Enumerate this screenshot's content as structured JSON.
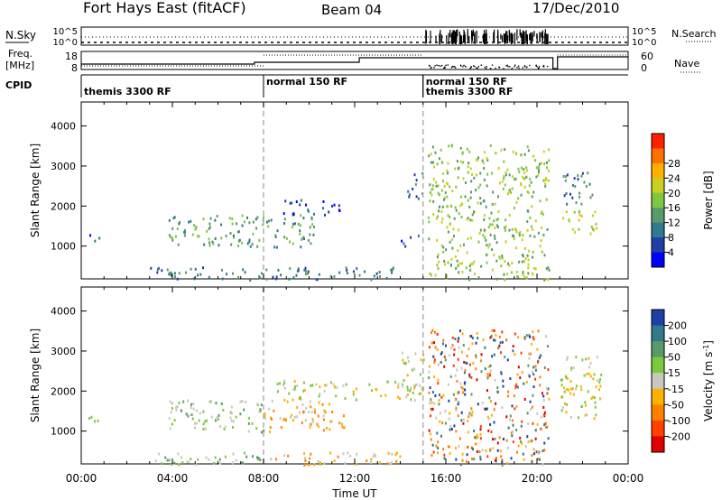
{
  "header": {
    "title": "Fort Hays East (fitACF)",
    "beam": "Beam 04",
    "date": "17/Dec/2010"
  },
  "panel_labels": {
    "nsky": "N.Sky",
    "nsearch": "N.Search",
    "freq_line1": "Freq.",
    "freq_line2": "[MHz]",
    "nave": "Nave",
    "cpid": "CPID"
  },
  "strip_ticks": {
    "nsky_left": [
      "10^5",
      "10^0"
    ],
    "nsky_right": [
      "10^5",
      "10^0"
    ],
    "freq_left": [
      "18",
      "8"
    ],
    "nave_right": [
      "60",
      "0"
    ]
  },
  "cpid": {
    "segments": [
      {
        "start_hour": 0.0,
        "label": "themis 3300 RF",
        "row": 1
      },
      {
        "start_hour": 8.0,
        "label": "normal 150 RF",
        "row": 0
      },
      {
        "start_hour": 15.0,
        "label": "normal 150 RF",
        "row": 0
      },
      {
        "start_hour": 15.0,
        "label": "themis 3300 RF",
        "row": 1
      }
    ]
  },
  "chart_data": [
    {
      "type": "heatmap",
      "name": "power",
      "xlabel": "",
      "ylabel": "Slant Range [km]",
      "xlim": [
        0,
        24
      ],
      "ylim": [
        180,
        4600
      ],
      "yticks": [
        1000,
        2000,
        3000,
        4000
      ],
      "colorbar": {
        "label": "Power [dB]",
        "ticks": [
          "4",
          "8",
          "12",
          "16",
          "20",
          "24",
          "28"
        ],
        "colors": [
          "#0000ff",
          "#1f3fa8",
          "#2f7a8c",
          "#5a9a68",
          "#7ec840",
          "#c8d020",
          "#ffb000",
          "#ff7000",
          "#ff2000"
        ]
      },
      "scatter_regions": [
        {
          "t0": 0.3,
          "t1": 0.9,
          "r0": 1150,
          "r1": 1400,
          "level": 1
        },
        {
          "t0": 3.8,
          "t1": 10.3,
          "r0": 1000,
          "r1": 1800,
          "level": 3
        },
        {
          "t0": 8.8,
          "t1": 11.5,
          "r0": 1800,
          "r1": 2200,
          "level": 1
        },
        {
          "t0": 3.0,
          "t1": 14.0,
          "r0": 180,
          "r1": 500,
          "level": 2
        },
        {
          "t0": 14.0,
          "t1": 14.8,
          "r0": 1000,
          "r1": 1300,
          "level": 1
        },
        {
          "t0": 14.3,
          "t1": 15.0,
          "r0": 2200,
          "r1": 3000,
          "level": 2
        },
        {
          "t0": 15.2,
          "t1": 20.5,
          "r0": 180,
          "r1": 3550,
          "level": 4
        },
        {
          "t0": 21.0,
          "t1": 22.6,
          "r0": 1300,
          "r1": 1900,
          "level": 5
        },
        {
          "t0": 21.1,
          "t1": 22.4,
          "r0": 2000,
          "r1": 2900,
          "level": 2
        }
      ]
    },
    {
      "type": "heatmap",
      "name": "velocity",
      "xlabel": "Time UT",
      "ylabel": "Slant Range [km]",
      "xlim": [
        0,
        24
      ],
      "ylim": [
        180,
        4600
      ],
      "yticks": [
        1000,
        2000,
        3000,
        4000
      ],
      "xticks": [
        "00:00",
        "04:00",
        "08:00",
        "12:00",
        "16:00",
        "20:00",
        "00:00"
      ],
      "colorbar": {
        "label": "Velocity [m s",
        "label_sup": "-1",
        "label_end": "]",
        "ticks": [
          "200",
          "100",
          "50",
          "15",
          "-15",
          "-50",
          "-100",
          "-200"
        ],
        "colors": [
          "#1f3fa8",
          "#2f7a8c",
          "#5a9a68",
          "#7ec840",
          "#c8c8c0",
          "#ffb000",
          "#ff8000",
          "#ff4000",
          "#e00000"
        ]
      },
      "scatter_regions": [
        {
          "t0": 0.3,
          "t1": 1.0,
          "r0": 1150,
          "r1": 1400,
          "level": 3
        },
        {
          "t0": 3.8,
          "t1": 8.0,
          "r0": 1000,
          "r1": 1800,
          "level": 3
        },
        {
          "t0": 8.0,
          "t1": 11.5,
          "r0": 1000,
          "r1": 1800,
          "level": 5
        },
        {
          "t0": 8.5,
          "t1": 15.0,
          "r0": 1800,
          "r1": 2300,
          "level": 4
        },
        {
          "t0": 3.0,
          "t1": 8.0,
          "r0": 180,
          "r1": 500,
          "level": 3
        },
        {
          "t0": 8.0,
          "t1": 14.0,
          "r0": 180,
          "r1": 500,
          "level": 5
        },
        {
          "t0": 14.0,
          "t1": 15.0,
          "r0": 2000,
          "r1": 3000,
          "level": 4
        },
        {
          "t0": 15.2,
          "t1": 20.5,
          "r0": 180,
          "r1": 3550,
          "level": 8
        },
        {
          "t0": 21.0,
          "t1": 22.8,
          "r0": 1300,
          "r1": 3000,
          "level": 4
        }
      ]
    }
  ]
}
